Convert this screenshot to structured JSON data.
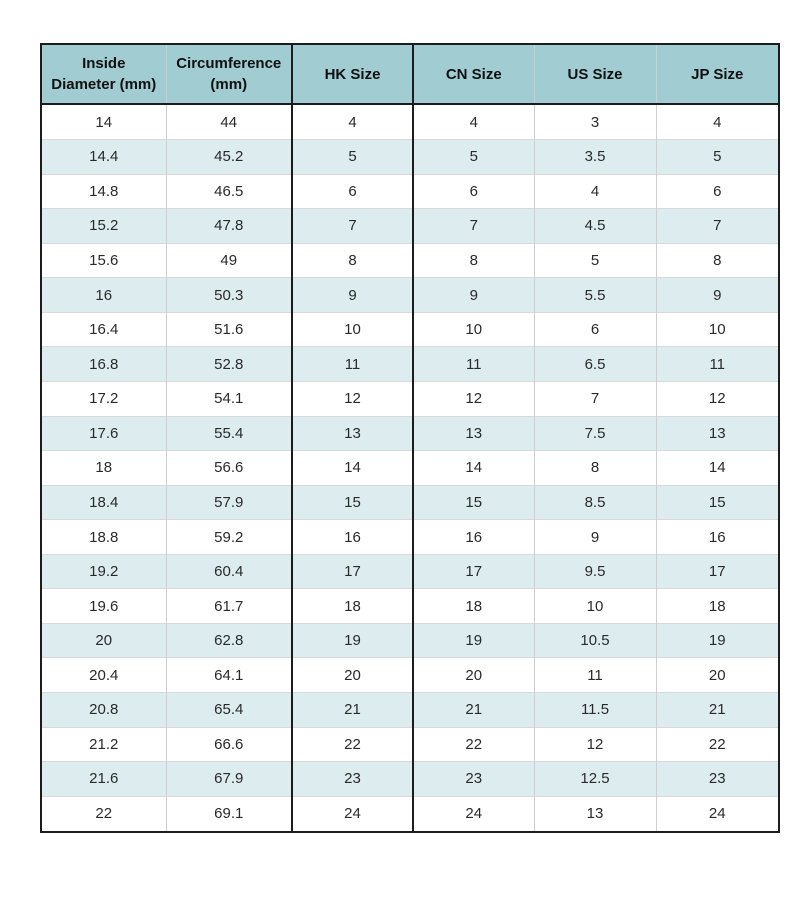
{
  "chart_data": {
    "type": "table",
    "columns": [
      "Inside Diameter (mm)",
      "Circumference (mm)",
      "HK Size",
      "CN Size",
      "US Size",
      "JP Size"
    ],
    "rows": [
      [
        "14",
        "44",
        "4",
        "4",
        "3",
        "4"
      ],
      [
        "14.4",
        "45.2",
        "5",
        "5",
        "3.5",
        "5"
      ],
      [
        "14.8",
        "46.5",
        "6",
        "6",
        "4",
        "6"
      ],
      [
        "15.2",
        "47.8",
        "7",
        "7",
        "4.5",
        "7"
      ],
      [
        "15.6",
        "49",
        "8",
        "8",
        "5",
        "8"
      ],
      [
        "16",
        "50.3",
        "9",
        "9",
        "5.5",
        "9"
      ],
      [
        "16.4",
        "51.6",
        "10",
        "10",
        "6",
        "10"
      ],
      [
        "16.8",
        "52.8",
        "11",
        "11",
        "6.5",
        "11"
      ],
      [
        "17.2",
        "54.1",
        "12",
        "12",
        "7",
        "12"
      ],
      [
        "17.6",
        "55.4",
        "13",
        "13",
        "7.5",
        "13"
      ],
      [
        "18",
        "56.6",
        "14",
        "14",
        "8",
        "14"
      ],
      [
        "18.4",
        "57.9",
        "15",
        "15",
        "8.5",
        "15"
      ],
      [
        "18.8",
        "59.2",
        "16",
        "16",
        "9",
        "16"
      ],
      [
        "19.2",
        "60.4",
        "17",
        "17",
        "9.5",
        "17"
      ],
      [
        "19.6",
        "61.7",
        "18",
        "18",
        "10",
        "18"
      ],
      [
        "20",
        "62.8",
        "19",
        "19",
        "10.5",
        "19"
      ],
      [
        "20.4",
        "64.1",
        "20",
        "20",
        "11",
        "20"
      ],
      [
        "20.8",
        "65.4",
        "21",
        "21",
        "11.5",
        "21"
      ],
      [
        "21.2",
        "66.6",
        "22",
        "22",
        "12",
        "22"
      ],
      [
        "21.6",
        "67.9",
        "23",
        "23",
        "12.5",
        "23"
      ],
      [
        "22",
        "69.1",
        "24",
        "24",
        "13",
        "24"
      ]
    ],
    "layout": {
      "grid": true,
      "striped_rows": true,
      "header_position": "top"
    }
  },
  "colors": {
    "header_bg": "#a0ccd2",
    "alt_row_bg": "#ddecef",
    "row_bg": "#ffffff",
    "border_dark": "#1c1c1c",
    "border_light": "#cfcfcf",
    "row_divider": "#d9d9d9",
    "header_text": "#111111",
    "cell_text": "#2a2a2a"
  }
}
